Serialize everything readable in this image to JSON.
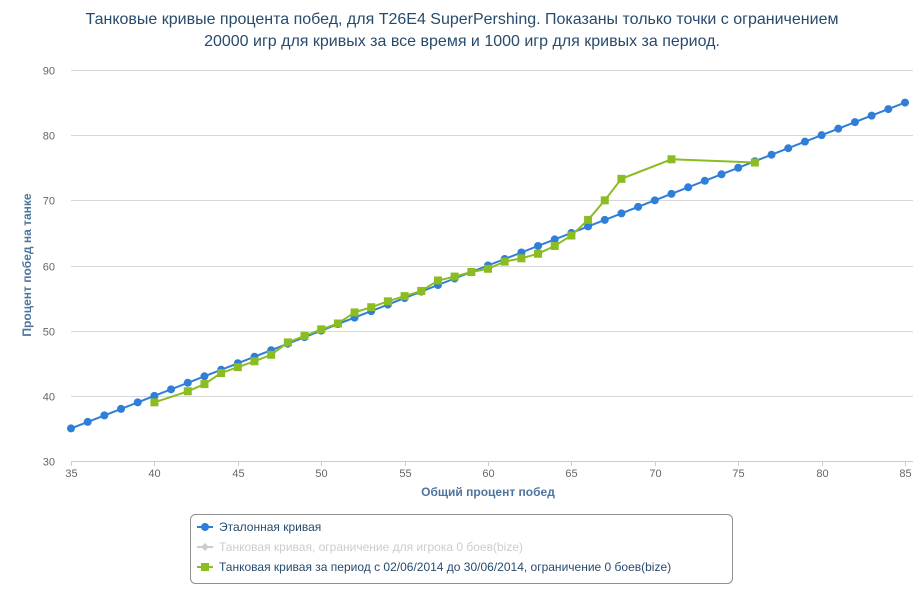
{
  "chart_data": {
    "type": "line",
    "title_lines": [
      "Танковые кривые процента побед, для T26E4 SuperPershing. Показаны только точки с ограничением",
      "20000 игр для кривых за все время и 1000 игр для кривых за период."
    ],
    "xlabel": "Общий процент побед",
    "ylabel": "Процент побед на танке",
    "xlim": [
      35,
      85
    ],
    "ylim": [
      30,
      90
    ],
    "xticks": [
      "35",
      "40",
      "45",
      "50",
      "55",
      "60",
      "65",
      "70",
      "75",
      "80",
      "85"
    ],
    "yticks": [
      "30",
      "40",
      "50",
      "60",
      "70",
      "80",
      "90"
    ],
    "grid": "horizontal",
    "legend_position": "bottom-center",
    "series": [
      {
        "name": "Эталонная кривая",
        "color": "#2f7ed8",
        "marker": "circle",
        "visible": true,
        "points": [
          [
            35,
            35
          ],
          [
            36,
            36
          ],
          [
            37,
            37
          ],
          [
            38,
            38
          ],
          [
            39,
            39
          ],
          [
            40,
            40
          ],
          [
            41,
            41
          ],
          [
            42,
            42
          ],
          [
            43,
            43
          ],
          [
            44,
            44
          ],
          [
            45,
            45
          ],
          [
            46,
            46
          ],
          [
            47,
            47
          ],
          [
            48,
            48
          ],
          [
            49,
            49
          ],
          [
            50,
            50
          ],
          [
            51,
            51
          ],
          [
            52,
            52
          ],
          [
            53,
            53
          ],
          [
            54,
            54
          ],
          [
            55,
            55
          ],
          [
            56,
            56
          ],
          [
            57,
            57
          ],
          [
            58,
            58
          ],
          [
            59,
            59
          ],
          [
            60,
            60
          ],
          [
            61,
            61
          ],
          [
            62,
            62
          ],
          [
            63,
            63
          ],
          [
            64,
            64
          ],
          [
            65,
            65
          ],
          [
            66,
            66
          ],
          [
            67,
            67
          ],
          [
            68,
            68
          ],
          [
            69,
            69
          ],
          [
            70,
            70
          ],
          [
            71,
            71
          ],
          [
            72,
            72
          ],
          [
            73,
            73
          ],
          [
            74,
            74
          ],
          [
            75,
            75
          ],
          [
            76,
            76
          ],
          [
            77,
            77
          ],
          [
            78,
            78
          ],
          [
            79,
            79
          ],
          [
            80,
            80
          ],
          [
            81,
            81
          ],
          [
            82,
            82
          ],
          [
            83,
            83
          ],
          [
            84,
            84
          ],
          [
            85,
            85
          ]
        ]
      },
      {
        "name": "Танковая кривая, ограничение для игрока 0 боев(bize)",
        "color": "#cccccc",
        "marker": "diamond",
        "visible": false,
        "points": []
      },
      {
        "name": "Танковая кривая за период с 02/06/2014 до 30/06/2014, ограничение 0 боев(bize)",
        "color": "#8bbc21",
        "marker": "square",
        "visible": true,
        "points": [
          [
            40,
            39
          ],
          [
            42,
            40.7
          ],
          [
            43,
            41.8
          ],
          [
            44,
            43.5
          ],
          [
            45,
            44.4
          ],
          [
            46,
            45.3
          ],
          [
            47,
            46.3
          ],
          [
            48,
            48.2
          ],
          [
            49,
            49.2
          ],
          [
            50,
            50.2
          ],
          [
            51,
            51.1
          ],
          [
            52,
            52.8
          ],
          [
            53,
            53.6
          ],
          [
            54,
            54.5
          ],
          [
            55,
            55.3
          ],
          [
            56,
            56.1
          ],
          [
            57,
            57.7
          ],
          [
            58,
            58.3
          ],
          [
            59,
            59
          ],
          [
            60,
            59.5
          ],
          [
            61,
            60.6
          ],
          [
            62,
            61.1
          ],
          [
            63,
            61.8
          ],
          [
            64,
            63
          ],
          [
            65,
            64.6
          ],
          [
            66,
            67
          ],
          [
            67,
            70
          ],
          [
            68,
            73.3
          ],
          [
            71,
            76.3
          ],
          [
            76,
            75.8
          ]
        ]
      }
    ]
  }
}
